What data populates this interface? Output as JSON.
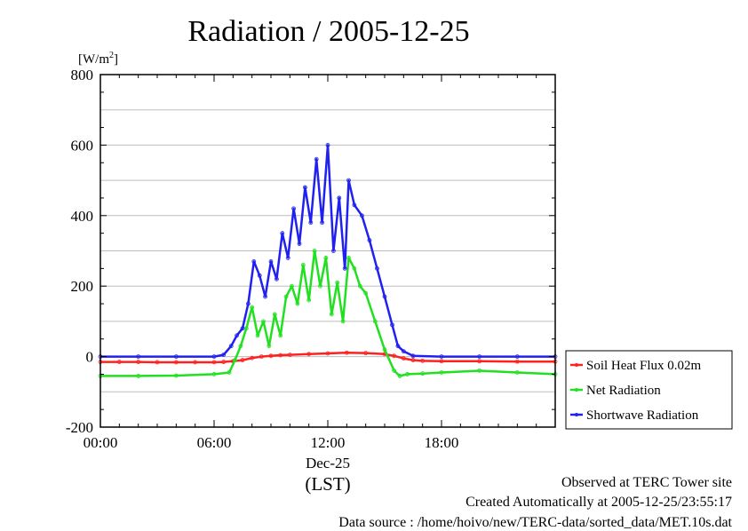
{
  "chart_data": {
    "type": "line",
    "title": "Radiation / 2005-12-25",
    "yunit": "[W/m",
    "yunit_sup": "2",
    "yunit_close": "]",
    "ylim": [
      -200,
      800
    ],
    "yticks": [
      "800",
      "600",
      "400",
      "200",
      "0",
      "-200"
    ],
    "ytick_values": [
      800,
      600,
      400,
      200,
      0,
      -200
    ],
    "xlim": [
      0,
      24
    ],
    "xticks": [
      "00:00",
      "06:00",
      "12:00",
      "18:00"
    ],
    "xtick_hours": [
      0,
      6,
      12,
      18
    ],
    "date_label": "Dec-25",
    "xlabel": "(LST)",
    "grid": true,
    "legend_position": "right",
    "series": [
      {
        "name": "Soil Heat Flux 0.02m",
        "color": "#ff2020",
        "x": [
          0,
          1,
          2,
          3,
          4,
          5,
          6,
          6.5,
          7,
          7.5,
          8,
          8.5,
          9,
          9.5,
          10,
          11,
          12,
          13,
          14,
          15,
          15.5,
          16,
          16.5,
          17,
          18,
          20,
          22,
          24
        ],
        "y": [
          -15,
          -15,
          -15,
          -16,
          -16,
          -16,
          -16,
          -15,
          -13,
          -10,
          -4,
          0,
          2,
          4,
          5,
          7,
          9,
          11,
          10,
          7,
          2,
          -5,
          -10,
          -12,
          -13,
          -13,
          -14,
          -14
        ]
      },
      {
        "name": "Net Radiation",
        "color": "#20e020",
        "x": [
          0,
          2,
          4,
          6,
          6.8,
          7.1,
          7.4,
          7.7,
          8,
          8.3,
          8.6,
          8.9,
          9.2,
          9.5,
          9.8,
          10.1,
          10.4,
          10.7,
          11,
          11.3,
          11.6,
          11.9,
          12.2,
          12.5,
          12.8,
          13.1,
          13.4,
          13.7,
          14,
          14.5,
          15,
          15.5,
          15.8,
          16.2,
          17,
          18,
          20,
          22,
          24
        ],
        "y": [
          -55,
          -55,
          -54,
          -50,
          -45,
          -10,
          30,
          80,
          140,
          60,
          100,
          30,
          120,
          60,
          170,
          200,
          150,
          260,
          160,
          300,
          200,
          280,
          120,
          210,
          100,
          280,
          250,
          200,
          180,
          100,
          20,
          -40,
          -55,
          -50,
          -48,
          -45,
          -40,
          -45,
          -50
        ]
      },
      {
        "name": "Shortwave Radiation",
        "color": "#2020f0",
        "x": [
          0,
          2,
          4,
          6,
          6.5,
          6.9,
          7.2,
          7.5,
          7.8,
          8.1,
          8.4,
          8.7,
          9,
          9.3,
          9.6,
          9.9,
          10.2,
          10.5,
          10.8,
          11.1,
          11.4,
          11.7,
          12,
          12.3,
          12.6,
          12.9,
          13.1,
          13.4,
          13.8,
          14.2,
          14.6,
          15,
          15.4,
          15.7,
          16,
          16.5,
          18,
          20,
          22,
          24
        ],
        "y": [
          0,
          0,
          0,
          0,
          5,
          30,
          60,
          80,
          150,
          270,
          230,
          170,
          270,
          220,
          350,
          280,
          420,
          320,
          480,
          380,
          560,
          380,
          600,
          300,
          450,
          250,
          500,
          430,
          400,
          330,
          250,
          170,
          90,
          30,
          15,
          2,
          0,
          0,
          0,
          0
        ]
      }
    ]
  },
  "footer": {
    "site": "Observed at TERC Tower site",
    "created": "Created Automatically at 2005-12-25/23:55:17",
    "source": "Data source : /home/hoivo/new/TERC-data/sorted_data/MET.10s.dat"
  }
}
